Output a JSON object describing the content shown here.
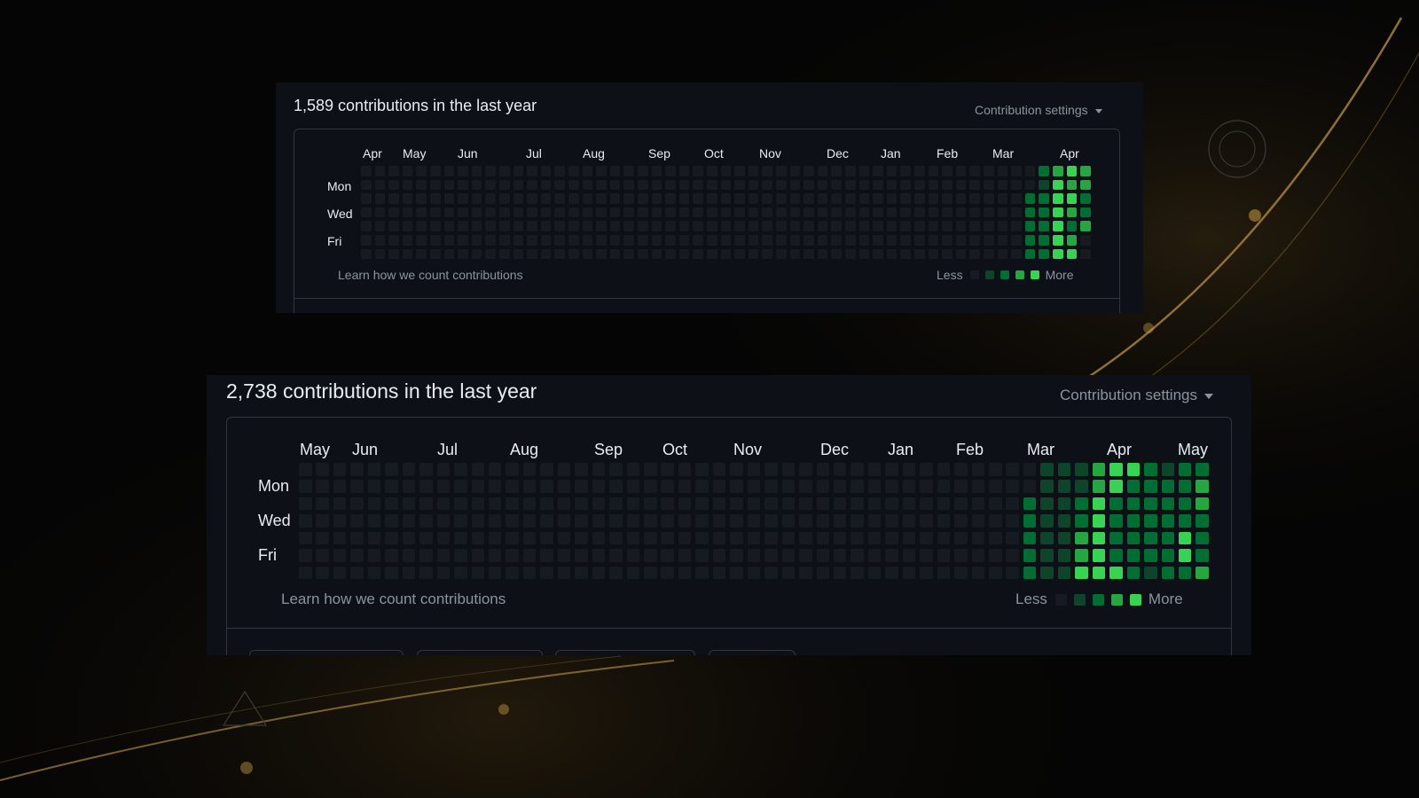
{
  "colors": {
    "level0": "#161b22",
    "level1": "#0e4429",
    "level2": "#006d32",
    "level3": "#26a641",
    "level4": "#39d353"
  },
  "top": {
    "title": "1,589 contributions in the last year",
    "settings_label": "Contribution settings",
    "months": [
      "Apr",
      "May",
      "Jun",
      "Jul",
      "Aug",
      "Sep",
      "Oct",
      "Nov",
      "Dec",
      "Jan",
      "Feb",
      "Mar",
      "Apr"
    ],
    "weekdays": [
      "Mon",
      "Wed",
      "Fri"
    ],
    "learn_label": "Learn how we count contributions",
    "legend_less": "Less",
    "legend_more": "More",
    "active_weeks": [
      [
        0,
        0,
        2,
        2,
        2,
        2,
        2
      ],
      [
        2,
        1,
        2,
        2,
        2,
        2,
        2
      ],
      [
        3,
        4,
        4,
        4,
        4,
        4,
        4
      ],
      [
        4,
        3,
        4,
        3,
        2,
        3,
        4
      ],
      [
        3,
        3,
        2,
        2,
        3,
        0,
        0
      ]
    ]
  },
  "bottom": {
    "title": "2,738 contributions in the last year",
    "settings_label": "Contribution settings",
    "months": [
      "May",
      "Jun",
      "Jul",
      "Aug",
      "Sep",
      "Oct",
      "Nov",
      "Dec",
      "Jan",
      "Feb",
      "Mar",
      "Apr",
      "May"
    ],
    "weekdays": [
      "Mon",
      "Wed",
      "Fri"
    ],
    "learn_label": "Learn how we count contributions",
    "legend_less": "Less",
    "legend_more": "More",
    "active_weeks": [
      [
        0,
        0,
        2,
        2,
        2,
        2,
        2
      ],
      [
        1,
        1,
        1,
        1,
        1,
        1,
        1
      ],
      [
        1,
        1,
        1,
        1,
        1,
        1,
        1
      ],
      [
        1,
        1,
        2,
        2,
        3,
        3,
        4
      ],
      [
        3,
        3,
        4,
        4,
        4,
        4,
        4
      ],
      [
        4,
        4,
        2,
        2,
        2,
        2,
        4
      ],
      [
        4,
        2,
        2,
        2,
        2,
        2,
        2
      ],
      [
        2,
        2,
        2,
        2,
        2,
        2,
        1
      ],
      [
        1,
        2,
        2,
        2,
        2,
        2,
        2
      ],
      [
        2,
        2,
        2,
        2,
        4,
        4,
        2
      ],
      [
        2,
        3,
        3,
        2,
        2,
        2,
        3
      ]
    ]
  }
}
